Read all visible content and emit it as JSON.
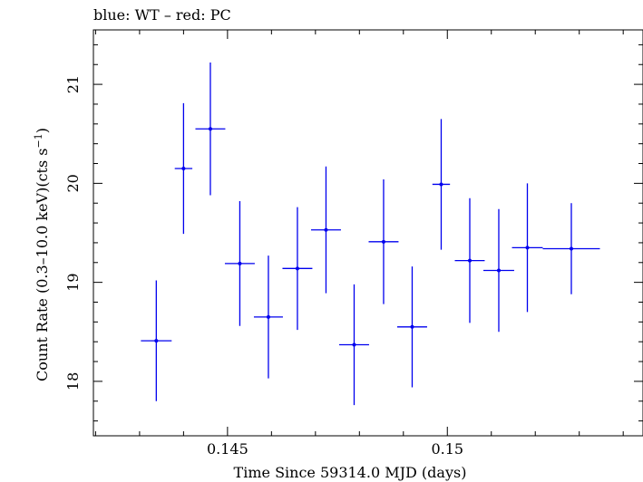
{
  "chart_data": {
    "type": "scatter",
    "title": "blue: WT – red: PC",
    "xlabel": "Time Since 59314.0 MJD (days)",
    "ylabel_main": "Count Rate (0.3–10.0 keV)(cts s",
    "ylabel_sup": "−1",
    "ylabel_end": ")",
    "xlim": [
      0.14195,
      0.15445
    ],
    "ylim": [
      17.45,
      21.55
    ],
    "xticks": [
      0.145,
      0.15
    ],
    "xtick_labels": [
      "0.145",
      "0.15"
    ],
    "yticks": [
      18,
      19,
      20,
      21
    ],
    "ytick_labels": [
      "18",
      "19",
      "20",
      "21"
    ],
    "grid": false,
    "series": [
      {
        "color": "#0000ee",
        "points": [
          {
            "x": 0.14338,
            "xerr": 0.00035,
            "y": 18.41,
            "yerr": 0.61
          },
          {
            "x": 0.144,
            "xerr": 0.0002,
            "y": 20.15,
            "yerr": 0.66
          },
          {
            "x": 0.14461,
            "xerr": 0.00034,
            "y": 20.55,
            "yerr": 0.67
          },
          {
            "x": 0.14528,
            "xerr": 0.00034,
            "y": 19.19,
            "yerr": 0.63
          },
          {
            "x": 0.14593,
            "xerr": 0.00033,
            "y": 18.65,
            "yerr": 0.62
          },
          {
            "x": 0.14659,
            "xerr": 0.00034,
            "y": 19.14,
            "yerr": 0.62
          },
          {
            "x": 0.14724,
            "xerr": 0.00034,
            "y": 19.53,
            "yerr": 0.64
          },
          {
            "x": 0.14788,
            "xerr": 0.00034,
            "y": 18.37,
            "yerr": 0.61
          },
          {
            "x": 0.14855,
            "xerr": 0.00034,
            "y": 19.41,
            "yerr": 0.63
          },
          {
            "x": 0.1492,
            "xerr": 0.00034,
            "y": 18.55,
            "yerr": 0.61
          },
          {
            "x": 0.14986,
            "xerr": 0.0002,
            "y": 19.99,
            "yerr": 0.66
          },
          {
            "x": 0.15051,
            "xerr": 0.00034,
            "y": 19.22,
            "yerr": 0.63
          },
          {
            "x": 0.15117,
            "xerr": 0.00035,
            "y": 19.12,
            "yerr": 0.62
          },
          {
            "x": 0.15182,
            "xerr": 0.00035,
            "y": 19.35,
            "yerr": 0.65
          },
          {
            "x": 0.15282,
            "xerr": 0.00065,
            "y": 19.34,
            "yerr": 0.46
          }
        ]
      }
    ]
  }
}
